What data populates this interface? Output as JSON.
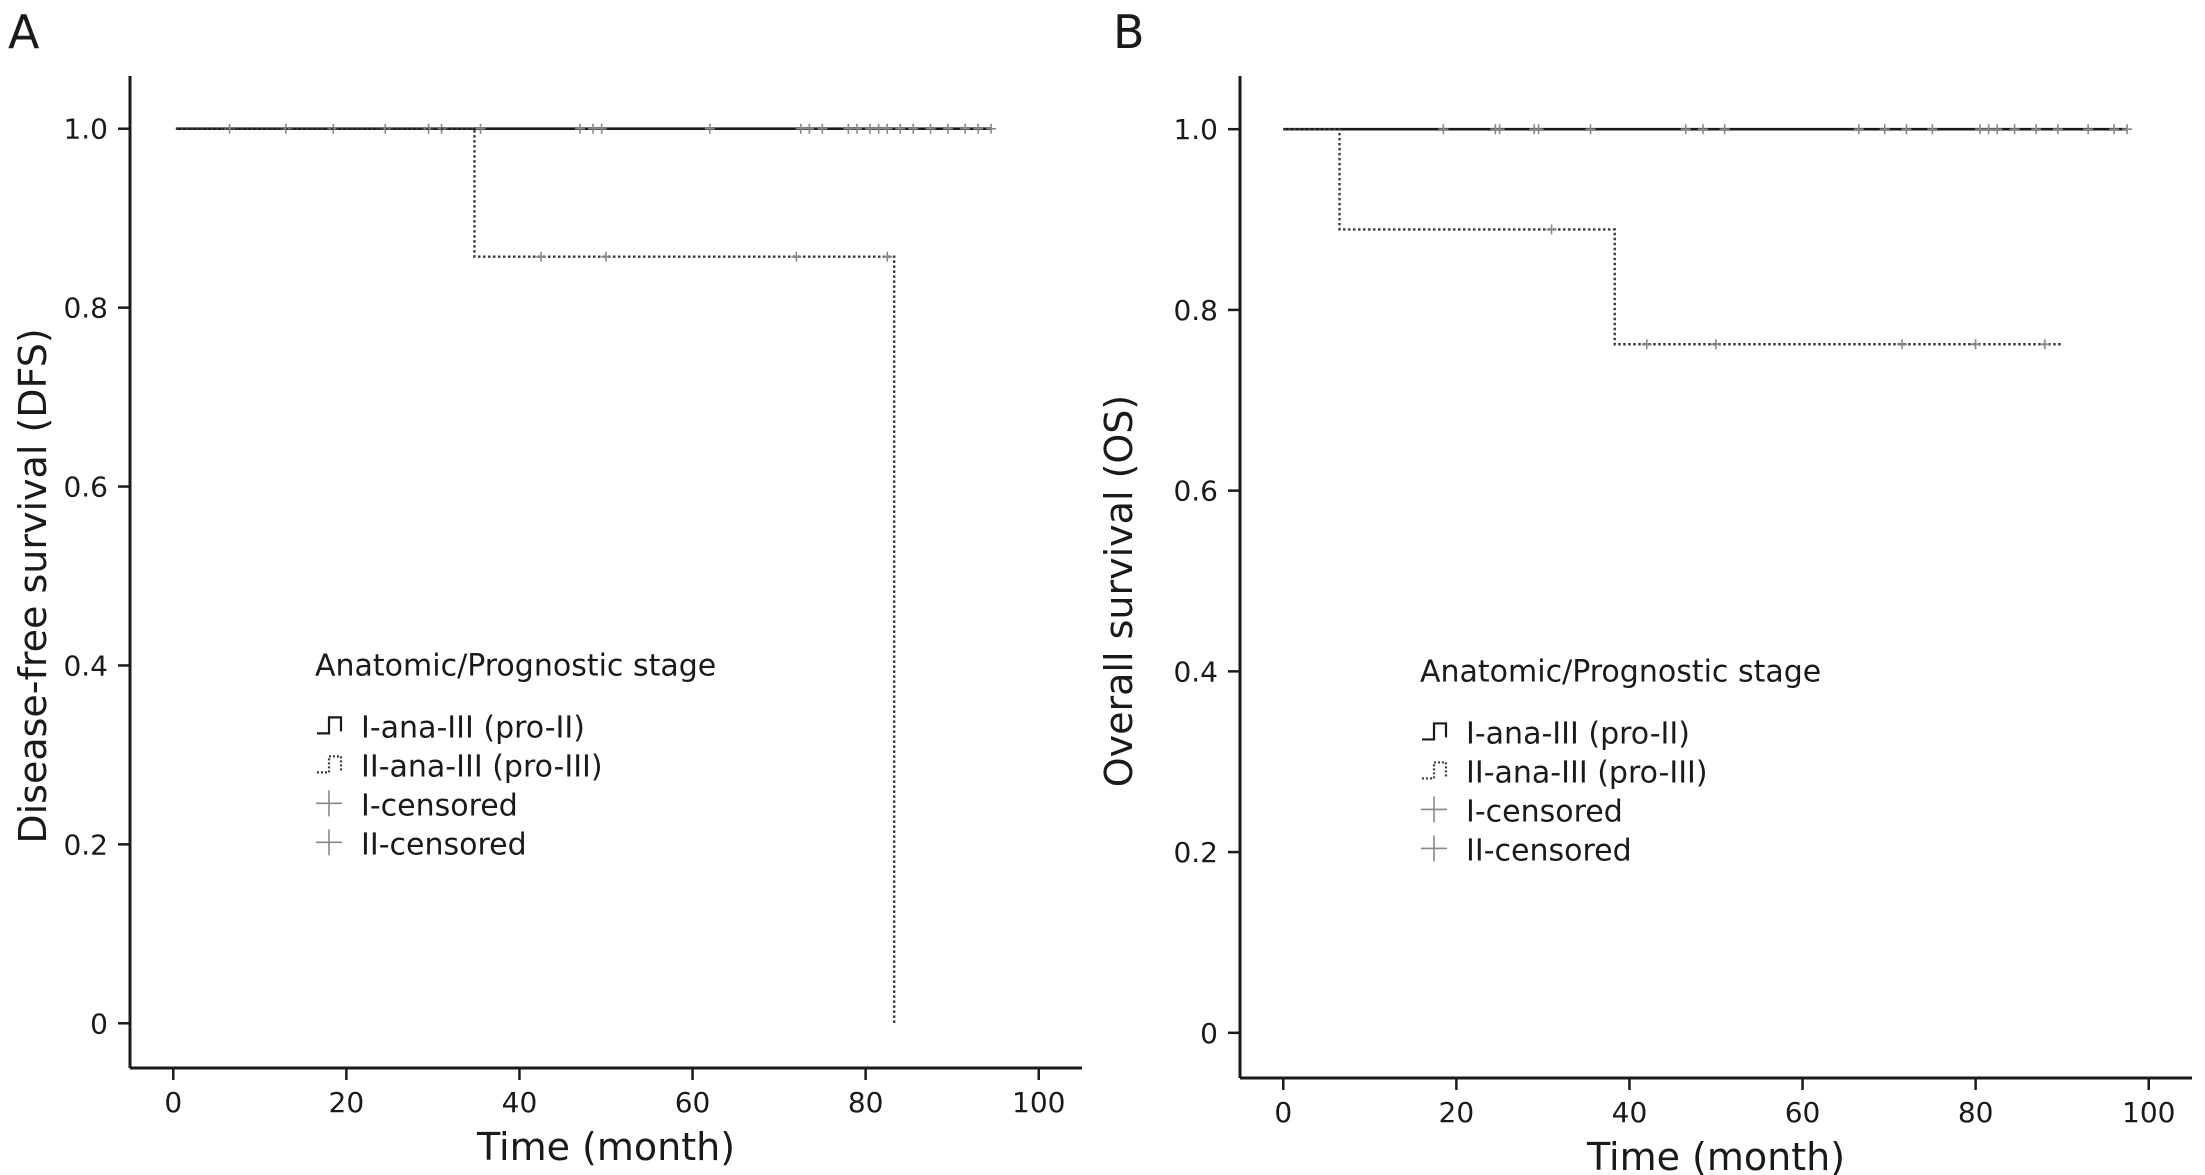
{
  "chart_data": [
    {
      "panel": "A",
      "type": "line",
      "title": "",
      "xlabel": "Time (month)",
      "ylabel": "Disease-free survival (DFS)",
      "xlim": [
        -5,
        105
      ],
      "ylim": [
        -0.05,
        1.05
      ],
      "xticks": [
        0,
        20,
        40,
        60,
        80,
        100
      ],
      "yticks": [
        0,
        0.2,
        0.4,
        0.6,
        0.8,
        1.0
      ],
      "ytick_labels": [
        "0",
        "0.2",
        "0.4",
        "0.6",
        "0.8",
        "1.0"
      ],
      "grid": false,
      "legend": {
        "placement": "center-left",
        "title": "Anatomic/Prognostic stage",
        "entries": [
          "I-ana-III (pro-II)",
          "II-ana-III (pro-III)",
          "I-censored",
          "II-censored"
        ]
      },
      "series": [
        {
          "name": "I-ana-III (pro-II)",
          "style": "solid",
          "color": "#1a1a1a",
          "steps": [
            [
              0.3,
              1.0
            ],
            [
              94.5,
              1.0
            ]
          ],
          "censored": [
            [
              6.5,
              1.0
            ],
            [
              13,
              1.0
            ],
            [
              18.5,
              1.0
            ],
            [
              24.5,
              1.0
            ],
            [
              29.5,
              1.0
            ],
            [
              31,
              1.0
            ],
            [
              35.5,
              1.0
            ],
            [
              47,
              1.0
            ],
            [
              48.5,
              1.0
            ],
            [
              49.5,
              1.0
            ],
            [
              62,
              1.0
            ],
            [
              72.5,
              1.0
            ],
            [
              73.5,
              1.0
            ],
            [
              75,
              1.0
            ],
            [
              78,
              1.0
            ],
            [
              79,
              1.0
            ],
            [
              80.5,
              1.0
            ],
            [
              81.5,
              1.0
            ],
            [
              82.5,
              1.0
            ],
            [
              84,
              1.0
            ],
            [
              85.5,
              1.0
            ],
            [
              87.5,
              1.0
            ],
            [
              89.5,
              1.0
            ],
            [
              91.5,
              1.0
            ],
            [
              93,
              1.0
            ],
            [
              94.5,
              1.0
            ]
          ]
        },
        {
          "name": "II-ana-III (pro-III)",
          "style": "dotted",
          "color": "#3a3a3a",
          "steps": [
            [
              0.3,
              1.0
            ],
            [
              34.8,
              1.0
            ],
            [
              34.8,
              0.857
            ],
            [
              83.3,
              0.857
            ],
            [
              83.3,
              0.0
            ]
          ],
          "censored": [
            [
              42.5,
              0.857
            ],
            [
              50,
              0.857
            ],
            [
              72,
              0.857
            ],
            [
              82.5,
              0.857
            ]
          ]
        }
      ]
    },
    {
      "panel": "B",
      "type": "line",
      "title": "",
      "xlabel": "Time (month)",
      "ylabel": "Overall survival (OS)",
      "xlim": [
        -5,
        105
      ],
      "ylim": [
        -0.05,
        1.05
      ],
      "xticks": [
        0,
        20,
        40,
        60,
        80,
        100
      ],
      "yticks": [
        0,
        0.2,
        0.4,
        0.6,
        0.8,
        1.0
      ],
      "ytick_labels": [
        "0",
        "0.2",
        "0.4",
        "0.6",
        "0.8",
        "1.0"
      ],
      "grid": false,
      "legend": {
        "placement": "center-left",
        "title": "Anatomic/Prognostic stage",
        "entries": [
          "I-ana-III (pro-II)",
          "II-ana-III (pro-III)",
          "I-censored",
          "II-censored"
        ]
      },
      "series": [
        {
          "name": "I-ana-III (pro-II)",
          "style": "solid",
          "color": "#1a1a1a",
          "steps": [
            [
              0,
              1.0
            ],
            [
              97.5,
              1.0
            ]
          ],
          "censored": [
            [
              18.5,
              1.0
            ],
            [
              24.5,
              1.0
            ],
            [
              25,
              1.0
            ],
            [
              29,
              1.0
            ],
            [
              29.5,
              1.0
            ],
            [
              35.5,
              1.0
            ],
            [
              46.5,
              1.0
            ],
            [
              48.5,
              1.0
            ],
            [
              51,
              1.0
            ],
            [
              66.5,
              1.0
            ],
            [
              69.5,
              1.0
            ],
            [
              72,
              1.0
            ],
            [
              75,
              1.0
            ],
            [
              80.5,
              1.0
            ],
            [
              81.5,
              1.0
            ],
            [
              82.5,
              1.0
            ],
            [
              84.5,
              1.0
            ],
            [
              87,
              1.0
            ],
            [
              89.5,
              1.0
            ],
            [
              93,
              1.0
            ],
            [
              96,
              1.0
            ],
            [
              97.5,
              1.0
            ]
          ]
        },
        {
          "name": "II-ana-III (pro-III)",
          "style": "dotted",
          "color": "#3a3a3a",
          "steps": [
            [
              0,
              1.0
            ],
            [
              6.5,
              1.0
            ],
            [
              6.5,
              0.889
            ],
            [
              38.3,
              0.889
            ],
            [
              38.3,
              0.762
            ],
            [
              90,
              0.762
            ]
          ],
          "censored": [
            [
              31,
              0.889
            ],
            [
              42,
              0.762
            ],
            [
              50,
              0.762
            ],
            [
              71.5,
              0.762
            ],
            [
              80,
              0.762
            ],
            [
              88,
              0.762
            ]
          ]
        }
      ]
    }
  ],
  "colors": {
    "axis": "#1a1a1a",
    "censor_mark": "#888888"
  },
  "legend_icons": [
    "solid-step-icon",
    "dotted-step-icon",
    "censor-plus-icon",
    "censor-plus-icon"
  ]
}
